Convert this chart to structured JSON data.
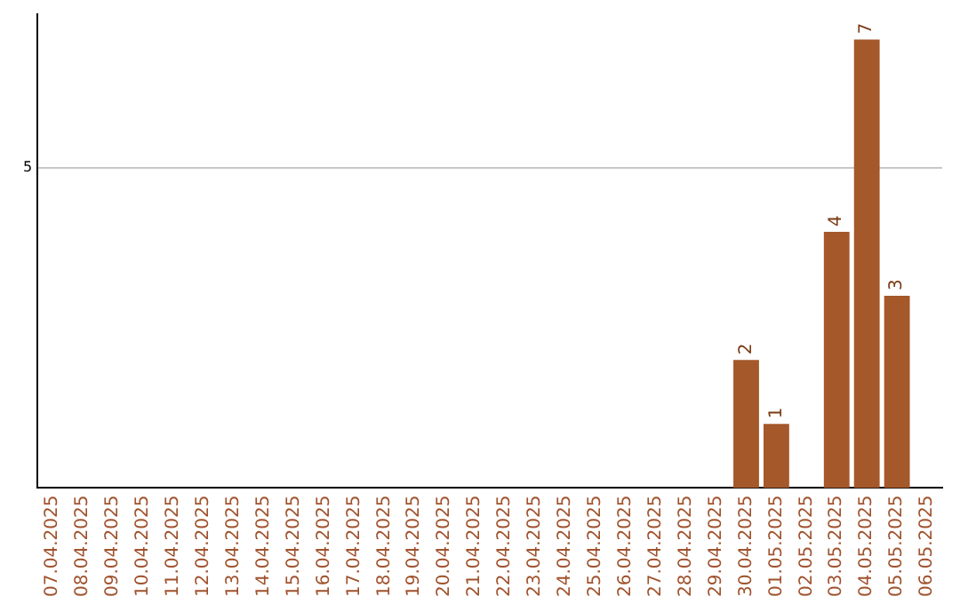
{
  "chart_data": {
    "type": "bar",
    "categories": [
      "07.04.2025",
      "08.04.2025",
      "09.04.2025",
      "10.04.2025",
      "11.04.2025",
      "12.04.2025",
      "13.04.2025",
      "14.04.2025",
      "15.04.2025",
      "16.04.2025",
      "17.04.2025",
      "18.04.2025",
      "19.04.2025",
      "20.04.2025",
      "21.04.2025",
      "22.04.2025",
      "23.04.2025",
      "24.04.2025",
      "25.04.2025",
      "26.04.2025",
      "27.04.2025",
      "28.04.2025",
      "29.04.2025",
      "30.04.2025",
      "01.05.2025",
      "02.05.2025",
      "03.05.2025",
      "04.05.2025",
      "05.05.2025",
      "06.05.2025"
    ],
    "values": [
      null,
      null,
      null,
      null,
      null,
      null,
      null,
      null,
      null,
      null,
      null,
      null,
      null,
      null,
      null,
      null,
      null,
      null,
      null,
      null,
      null,
      null,
      null,
      2,
      1,
      null,
      4,
      7,
      3,
      null
    ],
    "value_labels": [
      null,
      null,
      null,
      null,
      null,
      null,
      null,
      null,
      null,
      null,
      null,
      null,
      null,
      null,
      null,
      null,
      null,
      null,
      null,
      null,
      null,
      null,
      null,
      "2",
      "1",
      null,
      "4",
      "7",
      "3",
      null
    ],
    "color": "#a5582a",
    "ylim": [
      0,
      7.4
    ],
    "yticks": [
      5
    ],
    "grid": "y",
    "legend": false
  }
}
